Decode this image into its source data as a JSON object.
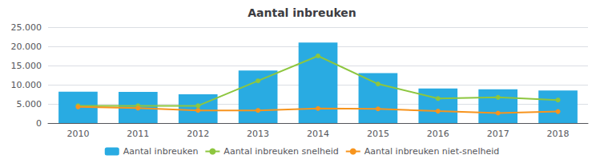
{
  "chart_data": {
    "type": "bar",
    "title": "Aantal inbreuken",
    "categories": [
      "2010",
      "2011",
      "2012",
      "2013",
      "2014",
      "2015",
      "2016",
      "2017",
      "2018"
    ],
    "series": [
      {
        "name": "Aantal inbreuken",
        "type": "bar",
        "color": "#29ABE2",
        "values": [
          8200,
          8100,
          7500,
          13700,
          21000,
          13000,
          9000,
          8800,
          8500
        ]
      },
      {
        "name": "Aantal inbreuken snelheid",
        "type": "line",
        "color": "#8DC63F",
        "marker": "circle",
        "values": [
          4500,
          4500,
          4500,
          11000,
          17500,
          10200,
          6400,
          6700,
          6000
        ]
      },
      {
        "name": "Aantal inbreuken niet-snelheid",
        "type": "line",
        "color": "#F7941D",
        "marker": "circle",
        "values": [
          4200,
          3900,
          3300,
          3300,
          3800,
          3700,
          3100,
          2600,
          3000
        ]
      }
    ],
    "ylim": [
      0,
      25000
    ],
    "yticks": [
      0,
      {
        "value": 5000,
        "label": "5.000"
      },
      {
        "value": 10000,
        "label": "10.000"
      },
      {
        "value": 15000,
        "label": "15.000"
      },
      {
        "value": 20000,
        "label": "20.000"
      },
      {
        "value": 25000,
        "label": "25.000"
      }
    ],
    "grid": true,
    "legend": "bottom"
  }
}
